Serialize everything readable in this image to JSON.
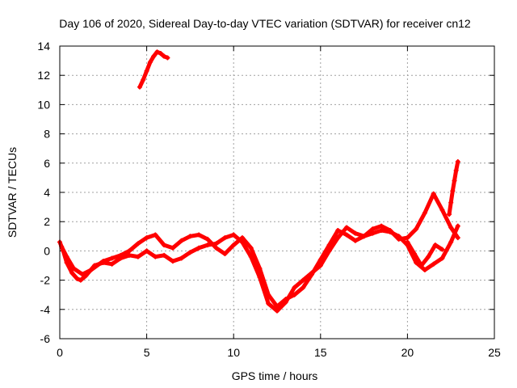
{
  "chart_data": {
    "type": "scatter",
    "title": "Day 106 of 2020, Sidereal Day-to-day VTEC variation (SDTVAR) for receiver cn12",
    "xlabel": "GPS time / hours",
    "ylabel": "SDTVAR / TECUs",
    "xlim": [
      0,
      25
    ],
    "ylim": [
      -6,
      14
    ],
    "xticks": [
      0,
      5,
      10,
      15,
      20,
      25
    ],
    "yticks": [
      -6,
      -4,
      -2,
      0,
      2,
      4,
      6,
      8,
      10,
      12,
      14
    ],
    "grid": true,
    "marker": "+",
    "series_color": "#ff0000",
    "series": [
      {
        "name": "main-trace-a",
        "x": [
          0.0,
          0.2,
          0.4,
          0.7,
          1.0,
          1.2,
          1.5,
          2.0,
          2.5,
          3.0,
          3.5,
          4.0,
          4.5,
          5.0,
          5.5,
          6.0,
          6.5,
          7.0,
          7.5,
          8.0,
          8.5,
          9.0,
          9.5,
          10.0,
          10.5,
          11.0,
          11.5,
          12.0,
          12.5,
          13.0,
          13.5,
          14.0,
          14.5,
          15.0,
          15.5,
          16.0,
          16.5,
          17.0,
          17.5,
          18.0,
          18.5,
          19.0,
          19.5,
          20.0,
          20.5,
          21.0,
          21.5,
          22.0,
          22.5,
          22.9
        ],
        "y": [
          0.6,
          0.0,
          -0.8,
          -1.5,
          -1.9,
          -2.0,
          -1.7,
          -1.0,
          -0.8,
          -0.9,
          -0.5,
          -0.3,
          -0.4,
          0.0,
          -0.4,
          -0.3,
          -0.7,
          -0.5,
          -0.1,
          0.2,
          0.4,
          0.5,
          0.9,
          1.1,
          0.6,
          -0.4,
          -1.8,
          -3.6,
          -4.1,
          -3.5,
          -2.5,
          -2.0,
          -1.5,
          -1.0,
          0.0,
          0.9,
          1.6,
          1.2,
          1.0,
          1.2,
          1.4,
          1.3,
          1.0,
          0.4,
          -0.8,
          -1.3,
          -0.9,
          -0.5,
          0.6,
          1.7
        ]
      },
      {
        "name": "main-trace-b",
        "x": [
          0.1,
          0.4,
          0.8,
          1.3,
          1.8,
          2.5,
          3.0,
          3.5,
          4.0,
          4.5,
          5.0,
          5.5,
          6.0,
          6.5,
          7.0,
          7.5,
          8.0,
          8.5,
          9.0,
          9.5,
          10.0,
          10.5,
          11.0,
          11.5,
          12.0,
          12.5,
          13.0,
          13.5,
          14.0,
          14.5,
          15.0,
          15.5,
          16.0,
          16.5,
          17.0,
          17.5,
          18.0,
          18.5,
          19.0,
          19.5,
          20.0,
          20.5,
          21.0,
          21.5,
          22.0,
          22.5,
          22.9
        ],
        "y": [
          0.3,
          -0.4,
          -1.2,
          -1.6,
          -1.3,
          -0.7,
          -0.5,
          -0.3,
          0.0,
          0.5,
          0.9,
          1.1,
          0.4,
          0.2,
          0.7,
          1.0,
          1.1,
          0.8,
          0.2,
          -0.2,
          0.4,
          0.9,
          0.2,
          -1.2,
          -3.0,
          -3.8,
          -3.3,
          -3.0,
          -2.5,
          -1.6,
          -0.6,
          0.4,
          1.4,
          1.1,
          0.7,
          1.0,
          1.5,
          1.7,
          1.4,
          0.8,
          0.9,
          1.5,
          2.6,
          3.9,
          2.8,
          1.6,
          0.9
        ]
      },
      {
        "name": "upper-segment",
        "x": [
          4.6,
          4.8,
          5.0,
          5.2,
          5.4,
          5.6,
          5.8,
          6.0,
          6.2
        ],
        "y": [
          11.2,
          11.7,
          12.3,
          12.9,
          13.3,
          13.6,
          13.5,
          13.3,
          13.2
        ]
      },
      {
        "name": "late-spike",
        "x": [
          22.4,
          22.5,
          22.6,
          22.7,
          22.8,
          22.9
        ],
        "y": [
          2.5,
          3.3,
          4.1,
          4.8,
          5.5,
          6.1
        ]
      },
      {
        "name": "late-crossing",
        "x": [
          20.0,
          20.4,
          20.8,
          21.2,
          21.6,
          22.0
        ],
        "y": [
          0.6,
          -0.2,
          -1.0,
          -0.4,
          0.4,
          0.1
        ]
      }
    ]
  }
}
